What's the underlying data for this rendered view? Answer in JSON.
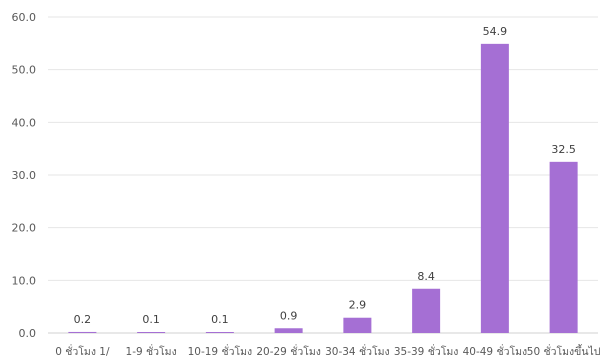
{
  "chart_data": {
    "type": "bar",
    "categories": [
      "0  ชั่วโมง 1/",
      "1-9 ชั่วโมง",
      "10-19 ชั่วโมง",
      "20-29 ชั่วโมง",
      "30-34 ชั่วโมง",
      "35-39 ชั่วโมง",
      "40-49 ชั่วโมง",
      "50 ชั่วโมงขึ้นไป"
    ],
    "values": [
      0.2,
      0.1,
      0.1,
      0.9,
      2.9,
      8.4,
      54.9,
      32.5
    ],
    "value_labels": [
      "0.2",
      "0.1",
      "0.1",
      "0.9",
      "2.9",
      "8.4",
      "54.9",
      "32.5"
    ],
    "ylim": [
      0,
      60
    ],
    "yticks": [
      0,
      10,
      20,
      30,
      40,
      50,
      60
    ],
    "ytick_labels": [
      "0.0",
      "10.0",
      "20.0",
      "30.0",
      "40.0",
      "50.0",
      "60.0"
    ],
    "grid": true,
    "bar_color": "#a56fd4",
    "title": "",
    "xlabel": "",
    "ylabel": ""
  }
}
